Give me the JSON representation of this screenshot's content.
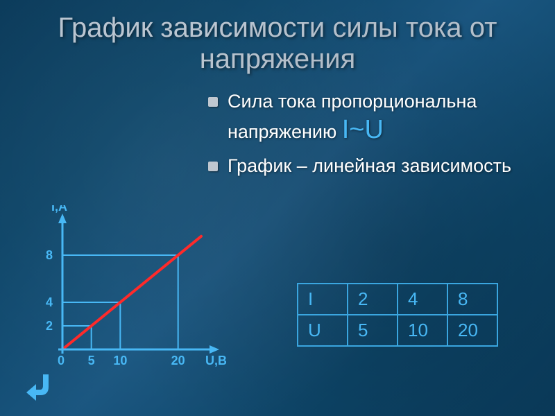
{
  "title": "График зависимости силы тока от напряжения",
  "bullets": [
    {
      "text_prefix": "Сила тока пропорциональна напряжению ",
      "formula": "I~U"
    },
    {
      "text_prefix": "График – линейная зависимость",
      "formula": ""
    }
  ],
  "chart": {
    "type": "line",
    "x_axis_label": "U,B",
    "y_axis_label": "I,A",
    "x_ticks": [
      0,
      5,
      10,
      20
    ],
    "y_ticks": [
      2,
      4,
      8
    ],
    "x_range": [
      0,
      24
    ],
    "y_range": [
      0,
      10
    ],
    "line_points": [
      [
        0,
        0
      ],
      [
        24,
        9.6
      ]
    ],
    "ref_verticals_x": [
      5,
      10,
      20
    ],
    "ref_horizontals_y": [
      2,
      4,
      8
    ],
    "axis_color": "#48b8f5",
    "axis_weight": 3,
    "grid_color": "#48b8f5",
    "grid_weight": 2,
    "line_color": "#ff2a2a",
    "line_weight": 4,
    "label_color": "#48b8f5",
    "label_fontsize": 18,
    "tick_fontsize": 18,
    "origin_label": "0"
  },
  "table": {
    "rows": [
      [
        "I",
        "2",
        "4",
        "8"
      ],
      [
        "U",
        "5",
        "10",
        "20"
      ]
    ],
    "border_color": "#3aa6e0",
    "text_color": "#48b8f5",
    "cell_fontsize": 26
  },
  "back_icon": {
    "color": "#48b8f5"
  }
}
